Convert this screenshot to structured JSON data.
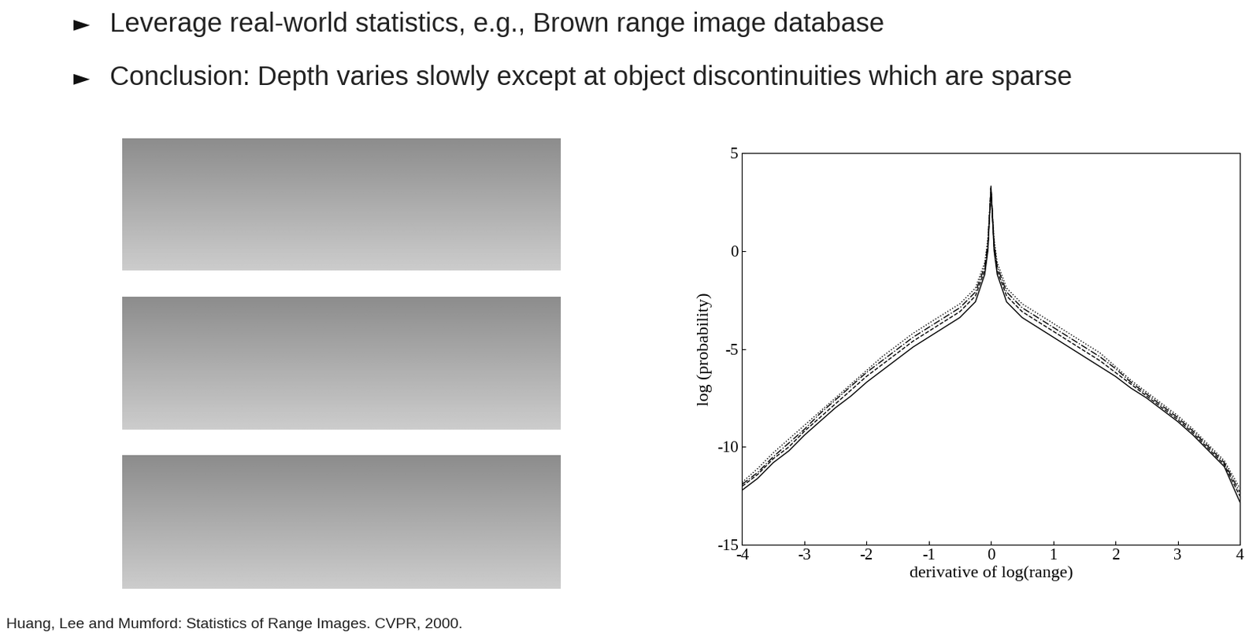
{
  "slide": {
    "bullet_symbol": "►",
    "bullets": [
      "Leverage real-world statistics, e.g., Brown range image database",
      "Conclusion: Depth varies slowly except at object discontinuities which are sparse"
    ],
    "citation": "Huang, Lee and Mumford: Statistics of Range Images. CVPR, 2000."
  },
  "chart_data": {
    "type": "line",
    "x_label": "derivative of log(range)",
    "y_label": "log (probability)",
    "x": [
      -4,
      -3.75,
      -3.5,
      -3.25,
      -3,
      -2.75,
      -2.5,
      -2.25,
      -2,
      -1.75,
      -1.5,
      -1.25,
      -1,
      -0.75,
      -0.5,
      -0.25,
      -0.1,
      -0.05,
      0,
      0.05,
      0.1,
      0.25,
      0.5,
      0.75,
      1,
      1.25,
      1.5,
      1.75,
      2,
      2.25,
      2.5,
      2.75,
      3,
      3.25,
      3.5,
      3.75,
      4
    ],
    "series": [
      {
        "color": "#000000",
        "line_style": "solid",
        "values": [
          -12.2,
          -11.6,
          -10.8,
          -10.2,
          -9.4,
          -8.7,
          -8.0,
          -7.4,
          -6.7,
          -6.1,
          -5.5,
          -4.9,
          -4.4,
          -3.9,
          -3.4,
          -2.6,
          -1.2,
          0.0,
          3.3,
          0.0,
          -1.2,
          -2.6,
          -3.4,
          -3.9,
          -4.4,
          -4.9,
          -5.4,
          -5.9,
          -6.4,
          -7.0,
          -7.5,
          -8.1,
          -8.7,
          -9.4,
          -10.2,
          -11.0,
          -12.8
        ]
      },
      {
        "color": "#000000",
        "line_style": "dashed",
        "values": [
          -12.0,
          -11.4,
          -10.6,
          -10.0,
          -9.2,
          -8.5,
          -7.8,
          -7.1,
          -6.4,
          -5.8,
          -5.2,
          -4.6,
          -4.1,
          -3.6,
          -3.1,
          -2.3,
          -1.0,
          0.2,
          3.2,
          0.2,
          -1.0,
          -2.3,
          -3.1,
          -3.6,
          -4.1,
          -4.6,
          -5.1,
          -5.6,
          -6.2,
          -6.8,
          -7.4,
          -8.0,
          -8.6,
          -9.3,
          -10.1,
          -10.9,
          -12.5
        ]
      },
      {
        "color": "#000000",
        "line_style": "dashdot",
        "values": [
          -11.9,
          -11.3,
          -10.5,
          -9.8,
          -9.1,
          -8.3,
          -7.6,
          -6.9,
          -6.2,
          -5.6,
          -5.0,
          -4.4,
          -3.9,
          -3.4,
          -2.9,
          -2.1,
          -0.8,
          0.4,
          3.1,
          0.4,
          -0.8,
          -2.1,
          -2.9,
          -3.4,
          -3.9,
          -4.4,
          -4.9,
          -5.4,
          -6.0,
          -6.7,
          -7.3,
          -7.9,
          -8.5,
          -9.2,
          -10.0,
          -10.8,
          -12.3
        ]
      },
      {
        "color": "#000000",
        "line_style": "dotted",
        "values": [
          -11.8,
          -11.1,
          -10.3,
          -9.6,
          -8.9,
          -8.2,
          -7.5,
          -6.8,
          -6.1,
          -5.4,
          -4.8,
          -4.2,
          -3.7,
          -3.2,
          -2.7,
          -1.9,
          -0.6,
          0.6,
          3.0,
          0.6,
          -0.6,
          -1.9,
          -2.7,
          -3.2,
          -3.7,
          -4.2,
          -4.7,
          -5.2,
          -5.9,
          -6.6,
          -7.2,
          -7.8,
          -8.4,
          -9.1,
          -9.9,
          -10.7,
          -12.1
        ]
      }
    ],
    "xlim": [
      -4,
      4
    ],
    "xticks": [
      -4,
      -3,
      -2,
      -1,
      0,
      1,
      2,
      3,
      4
    ],
    "ylim": [
      -15,
      5
    ],
    "yticks": [
      -15,
      -10,
      -5,
      0,
      5
    ],
    "grid": false
  }
}
